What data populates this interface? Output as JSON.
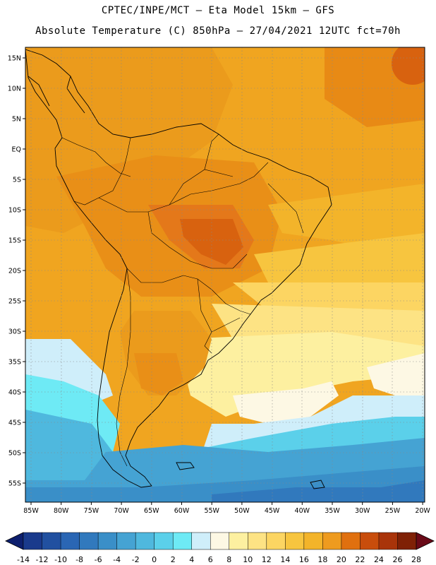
{
  "header": {
    "line1": "CPTEC/INPE/MCT –  Eta Model 15km – GFS",
    "line2": "Absolute Temperature (C) 850hPa – 27/04/2021 12UTC fct=70h"
  },
  "map": {
    "lat_labels": [
      "15N",
      "10N",
      "5N",
      "EQ",
      "5S",
      "10S",
      "15S",
      "20S",
      "25S",
      "30S",
      "35S",
      "40S",
      "45S",
      "50S",
      "55S"
    ],
    "lon_labels": [
      "85W",
      "80W",
      "75W",
      "70W",
      "65W",
      "60W",
      "55W",
      "50W",
      "45W",
      "40W",
      "35W",
      "30W",
      "25W",
      "20W"
    ],
    "region": "South America"
  },
  "colorbar": {
    "labels": [
      "-14",
      "-12",
      "-10",
      "-8",
      "-6",
      "-4",
      "-2",
      "0",
      "2",
      "4",
      "6",
      "8",
      "10",
      "12",
      "14",
      "16",
      "18",
      "20",
      "22",
      "24",
      "26",
      "28"
    ],
    "colors": [
      "#1a3a8c",
      "#2150a0",
      "#2a66b4",
      "#3179bd",
      "#3a8fc8",
      "#45a3d3",
      "#4fb8de",
      "#5bd0ea",
      "#6eeaf5",
      "#cfeefa",
      "#fdf8e4",
      "#fdf0a0",
      "#fde384",
      "#fcd562",
      "#f7c53f",
      "#f3b42a",
      "#ee9b1f",
      "#e0700f",
      "#c84d0c",
      "#a9340a",
      "#7f2106"
    ]
  }
}
